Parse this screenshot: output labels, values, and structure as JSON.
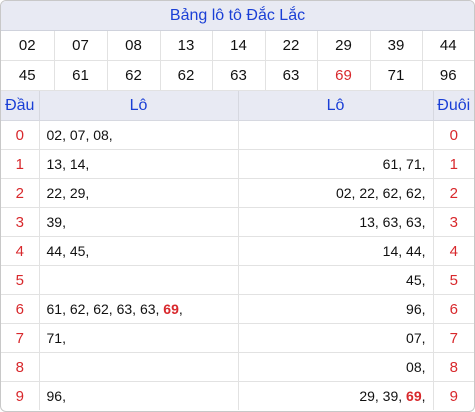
{
  "title": "Bảng lô tô Đắc Lắc",
  "numbers_row1": [
    "02",
    "07",
    "08",
    "13",
    "14",
    "22",
    "29",
    "39",
    "44"
  ],
  "numbers_row2": [
    "45",
    "61",
    "62",
    "62",
    "63",
    "63",
    "69",
    "71",
    "96"
  ],
  "highlight_number": "69",
  "colors": {
    "accent": "#1a3fd6",
    "highlight": "#d8282c",
    "header_bg": "#e8eaf3"
  },
  "headers": {
    "dau": "Đầu",
    "lo_left": "Lô",
    "lo_right": "Lô",
    "duoi": "Đuôi"
  },
  "rows": [
    {
      "dau": "0",
      "left": "02, 07, 08,",
      "right": "",
      "duoi": "0"
    },
    {
      "dau": "1",
      "left": "13, 14,",
      "right": "61, 71,",
      "duoi": "1"
    },
    {
      "dau": "2",
      "left": "22, 29,",
      "right": "02, 22, 62, 62,",
      "duoi": "2"
    },
    {
      "dau": "3",
      "left": "39,",
      "right": "13, 63, 63,",
      "duoi": "3"
    },
    {
      "dau": "4",
      "left": "44, 45,",
      "right": "14, 44,",
      "duoi": "4"
    },
    {
      "dau": "5",
      "left": "",
      "right": "45,",
      "duoi": "5"
    },
    {
      "dau": "6",
      "left": "61, 62, 62, 63, 63, 69,",
      "right": "96,",
      "duoi": "6"
    },
    {
      "dau": "7",
      "left": "71,",
      "right": "07,",
      "duoi": "7"
    },
    {
      "dau": "8",
      "left": "",
      "right": "08,",
      "duoi": "8"
    },
    {
      "dau": "9",
      "left": "96,",
      "right": "29, 39, 69,",
      "duoi": "9"
    }
  ]
}
